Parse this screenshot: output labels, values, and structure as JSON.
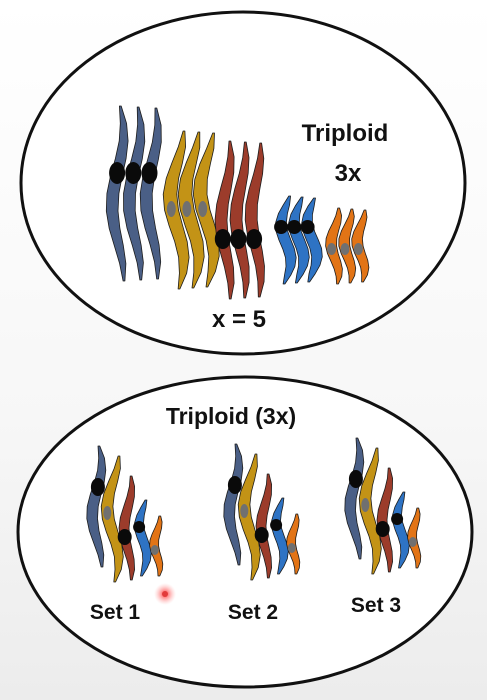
{
  "top_panel": {
    "title_line1": "Triploid",
    "title_line2": "3x",
    "base_number_label": "x = 5"
  },
  "bottom_panel": {
    "title": "Triploid (3x)",
    "sets": [
      {
        "label": "Set 1"
      },
      {
        "label": "Set 2"
      },
      {
        "label": "Set 3"
      }
    ]
  },
  "colors": {
    "chromosome_blue_gray": "#4a5f86",
    "chromosome_gold": "#c39316",
    "chromosome_rust": "#9c3c2b",
    "chromosome_blue": "#2e73c4",
    "chromosome_orange": "#e27416",
    "centromere_large": "#0a0a0a",
    "centromere_small": "#707070",
    "cursor_marker": "#e23b3b"
  }
}
